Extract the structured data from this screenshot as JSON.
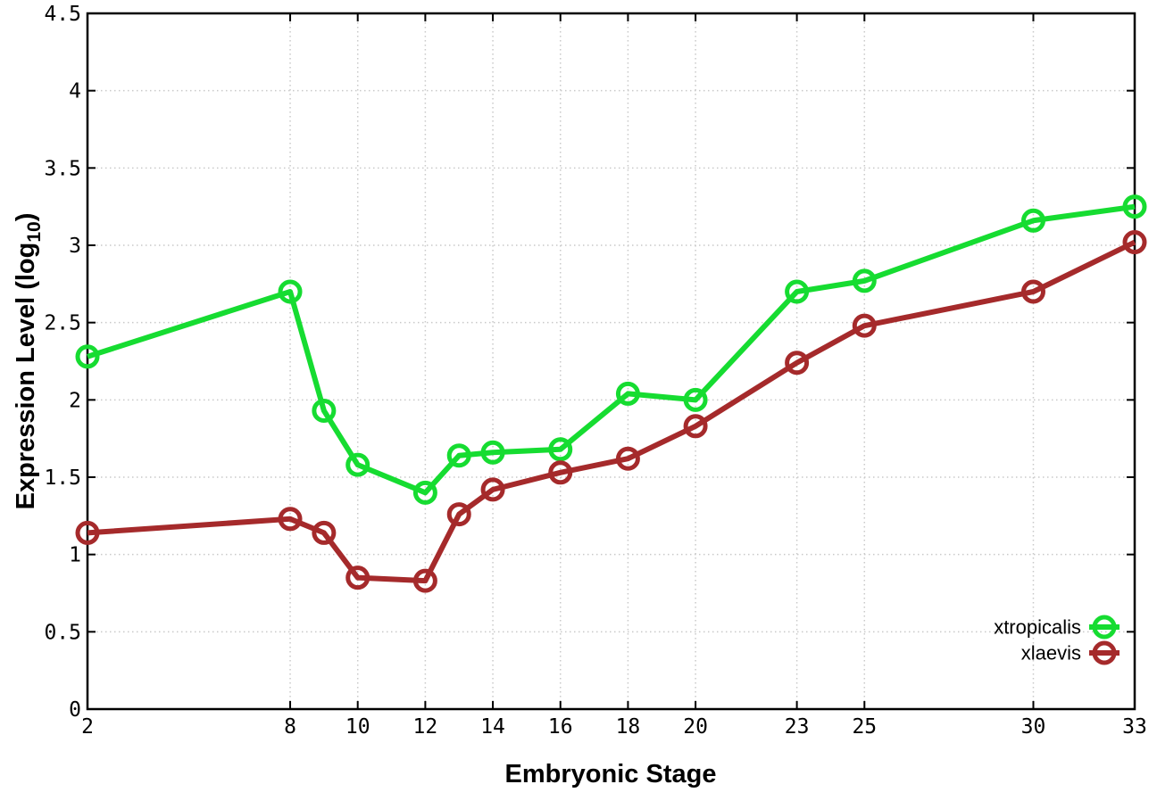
{
  "chart_data": {
    "type": "line",
    "title": "",
    "xlabel": "Embryonic Stage",
    "ylabel": "Expression Level (log10)",
    "ylabel_parts": {
      "pre": "Expression Level (log",
      "sub": "10",
      "post": ")"
    },
    "xlim": [
      2,
      33
    ],
    "ylim": [
      0,
      4.5
    ],
    "grid": true,
    "legend_position": "inside-bottom-right",
    "x": [
      2,
      8,
      9,
      10,
      12,
      13,
      14,
      16,
      18,
      20,
      23,
      25,
      30,
      33
    ],
    "xtick_values": [
      2,
      8,
      10,
      12,
      14,
      16,
      18,
      20,
      23,
      25,
      30,
      33
    ],
    "xtick_labels": [
      "2",
      "8",
      "10",
      "12",
      "14",
      "16",
      "18",
      "20",
      "23",
      "25",
      "30",
      "33"
    ],
    "ytick_values": [
      0,
      0.5,
      1,
      1.5,
      2,
      2.5,
      3,
      3.5,
      4,
      4.5
    ],
    "ytick_labels": [
      "0",
      "0.5",
      "1",
      "1.5",
      "2",
      "2.5",
      "3",
      "3.5",
      "4",
      "4.5"
    ],
    "series": [
      {
        "name": "xtropicalis",
        "color": "#16dc31",
        "marker": "open-circle",
        "values": [
          2.28,
          2.7,
          1.93,
          1.58,
          1.4,
          1.64,
          1.66,
          1.68,
          2.04,
          2.0,
          2.7,
          2.77,
          3.16,
          3.25
        ]
      },
      {
        "name": "xlaevis",
        "color": "#a52a2b",
        "marker": "open-circle",
        "values": [
          1.14,
          1.23,
          1.14,
          0.85,
          0.83,
          1.26,
          1.42,
          1.53,
          1.62,
          1.83,
          2.24,
          2.48,
          2.7,
          3.02
        ]
      }
    ],
    "colors": {
      "grid": "#c9c9c9",
      "axis": "#000000",
      "background": "#ffffff"
    }
  }
}
